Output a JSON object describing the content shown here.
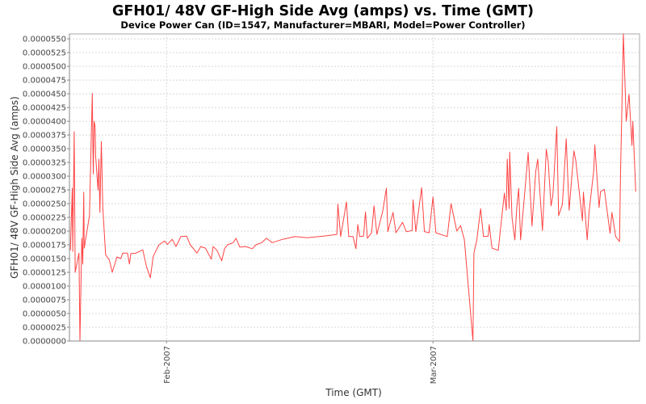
{
  "chart_data": {
    "type": "line",
    "title": "GFH01/ 48V GF-High Side Avg (amps) vs. Time (GMT)",
    "subtitle": "Device Power Can (ID=1547, Manufacturer=MBARI, Model=Power Controller)",
    "xlabel": "Time (GMT)",
    "ylabel": "GFH01/ 48V GF-High Side Avg (amps)",
    "x_unit": "days since 2007-02-01",
    "xlim": [
      -10.2,
      49.7
    ],
    "ylim": [
      0,
      5.59e-05
    ],
    "grid": true,
    "legend": "none",
    "series_color": "#ff4444",
    "x_ticks": [
      {
        "value": 0,
        "label": "Feb-2007"
      },
      {
        "value": 28,
        "label": "Mar-2007"
      }
    ],
    "y_tick_step": 2.5e-06,
    "y_tick_labels": [
      "0.0000000",
      "0.0000025",
      "0.0000050",
      "0.0000075",
      "0.0000100",
      "0.0000125",
      "0.0000150",
      "0.0000175",
      "0.0000200",
      "0.0000225",
      "0.0000250",
      "0.0000275",
      "0.0000300",
      "0.0000325",
      "0.0000350",
      "0.0000375",
      "0.0000400",
      "0.0000425",
      "0.0000450",
      "0.0000475",
      "0.0000500",
      "0.0000525",
      "0.0000550"
    ],
    "series": [
      {
        "name": "GF-High Side Avg",
        "x": [
          -10.1,
          -9.9,
          -9.85,
          -9.7,
          -9.6,
          -9.2,
          -9.1,
          -8.9,
          -8.8,
          -8.7,
          -8.65,
          -8.1,
          -7.8,
          -7.7,
          -7.6,
          -7.5,
          -7.45,
          -7.2,
          -7.1,
          -7.0,
          -6.85,
          -6.7,
          -6.4,
          -6.0,
          -5.7,
          -5.2,
          -4.8,
          -4.6,
          -4.1,
          -3.9,
          -3.75,
          -3.2,
          -2.5,
          -2.1,
          -1.7,
          -1.4,
          -0.8,
          -0.2,
          0.1,
          0.6,
          1.0,
          1.5,
          2.1,
          2.5,
          3.2,
          3.6,
          4.1,
          4.7,
          4.9,
          5.3,
          5.8,
          6.1,
          6.4,
          7.0,
          7.3,
          7.7,
          8.3,
          9.0,
          9.4,
          10.0,
          10.5,
          11.1,
          12.2,
          13.5,
          14.8,
          16.5,
          17.9,
          18.0,
          18.3,
          18.9,
          19.15,
          19.6,
          19.9,
          20.1,
          20.3,
          20.7,
          20.9,
          21.1,
          21.55,
          21.8,
          22.1,
          22.7,
          23.1,
          23.25,
          23.8,
          24.1,
          24.8,
          25.2,
          25.8,
          25.9,
          26.2,
          26.8,
          27.1,
          27.6,
          28.0,
          28.3,
          29.5,
          29.9,
          30.5,
          30.9,
          31.3,
          32.2,
          32.3,
          32.6,
          33.0,
          33.3,
          33.8,
          33.9,
          34.2,
          34.85,
          35.5,
          35.7,
          35.8,
          36.0,
          36.06,
          36.3,
          36.6,
          36.8,
          37.0,
          37.2,
          37.6,
          38.0,
          38.4,
          38.8,
          39.0,
          39.5,
          39.9,
          40.1,
          40.4,
          40.6,
          41.0,
          41.2,
          41.6,
          42.0,
          42.3,
          42.8,
          43.0,
          43.7,
          43.8,
          44.2,
          44.4,
          44.9,
          45.0,
          45.45,
          45.6,
          46.0,
          46.6,
          46.8,
          47.2,
          47.6,
          47.7,
          48.0,
          48.3,
          48.6,
          48.9,
          49.0,
          49.3
        ],
        "y": [
          1.65e-05,
          2.78e-05,
          1.63e-05,
          3.81e-05,
          1.25e-05,
          1.6e-05,
          0,
          1.87e-05,
          1.4e-05,
          2.71e-05,
          1.69e-05,
          2.28e-05,
          4.51e-05,
          3.04e-05,
          4e-05,
          3.9e-05,
          3.37e-05,
          2.75e-05,
          3.31e-05,
          2.34e-05,
          3.63e-05,
          2.43e-05,
          1.57e-05,
          1.47e-05,
          1.25e-05,
          1.53e-05,
          1.5e-05,
          1.6e-05,
          1.6e-05,
          1.4e-05,
          1.59e-05,
          1.6e-05,
          1.66e-05,
          1.35e-05,
          1.15e-05,
          1.54e-05,
          1.75e-05,
          1.82e-05,
          1.76e-05,
          1.85e-05,
          1.72e-05,
          1.9e-05,
          1.91e-05,
          1.75e-05,
          1.6e-05,
          1.72e-05,
          1.69e-05,
          1.49e-05,
          1.72e-05,
          1.65e-05,
          1.46e-05,
          1.68e-05,
          1.75e-05,
          1.79e-05,
          1.87e-05,
          1.71e-05,
          1.72e-05,
          1.68e-05,
          1.75e-05,
          1.79e-05,
          1.87e-05,
          1.79e-05,
          1.85e-05,
          1.9e-05,
          1.88e-05,
          1.91e-05,
          1.94e-05,
          2.49e-05,
          1.9e-05,
          2.53e-05,
          1.9e-05,
          1.9e-05,
          1.68e-05,
          2.12e-05,
          1.9e-05,
          1.91e-05,
          2.35e-05,
          1.87e-05,
          1.97e-05,
          2.46e-05,
          1.94e-05,
          2.35e-05,
          2.78e-05,
          1.99e-05,
          2.34e-05,
          1.97e-05,
          2.16e-05,
          1.99e-05,
          2.01e-05,
          2.57e-05,
          1.99e-05,
          2.79e-05,
          1.99e-05,
          1.97e-05,
          2.62e-05,
          1.97e-05,
          1.9e-05,
          2.5e-05,
          2e-05,
          2.1e-05,
          1.84e-05,
          0,
          1.6e-05,
          1.84e-05,
          2.41e-05,
          1.9e-05,
          1.91e-05,
          2.12e-05,
          1.69e-05,
          1.65e-05,
          2.69e-05,
          2.38e-05,
          3.31e-05,
          2.41e-05,
          3.44e-05,
          2.24e-05,
          1.84e-05,
          2.43e-05,
          2.78e-05,
          1.84e-05,
          2.63e-05,
          3.43e-05,
          2.09e-05,
          3.09e-05,
          3.31e-05,
          2.01e-05,
          3.49e-05,
          3.26e-05,
          2.46e-05,
          2.65e-05,
          3.9e-05,
          2.28e-05,
          2.49e-05,
          3.68e-05,
          2.38e-05,
          3.46e-05,
          3.29e-05,
          2.19e-05,
          2.71e-05,
          1.84e-05,
          2.35e-05,
          3.12e-05,
          3.57e-05,
          2.43e-05,
          2.72e-05,
          2.76e-05,
          1.96e-05,
          2.34e-05,
          1.9e-05,
          1.81e-05,
          3e-05,
          5.59e-05,
          4e-05,
          4.49e-05,
          3.56e-05,
          4e-05,
          2.72e-05
        ]
      }
    ]
  }
}
